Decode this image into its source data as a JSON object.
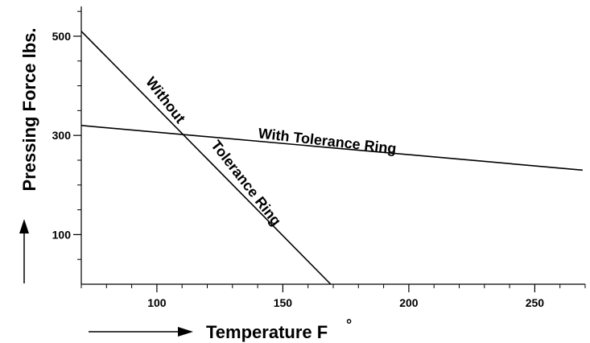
{
  "chart_data": {
    "type": "line",
    "xlabel": "Temperature F",
    "xlabel_degree": "°",
    "ylabel": "Pressing Force lbs.",
    "xlim": [
      70,
      270
    ],
    "ylim": [
      0,
      560
    ],
    "x_ticks": [
      100,
      150,
      200,
      250
    ],
    "y_ticks": [
      100,
      300,
      500
    ],
    "x_tick_labels": [
      "100",
      "150",
      "200",
      "250"
    ],
    "y_tick_labels": [
      "100",
      "300",
      "500"
    ],
    "grid": false,
    "legend": "none",
    "series": [
      {
        "name": "Without Tolerance Ring",
        "label_line1": "Without",
        "label_line2": "Tolerance Ring",
        "x": [
          70,
          169
        ],
        "y": [
          510,
          0
        ]
      },
      {
        "name": "With Tolerance Ring",
        "label_line1": "With Tolerance Ring",
        "x": [
          70,
          269
        ],
        "y": [
          320,
          230
        ]
      }
    ]
  }
}
